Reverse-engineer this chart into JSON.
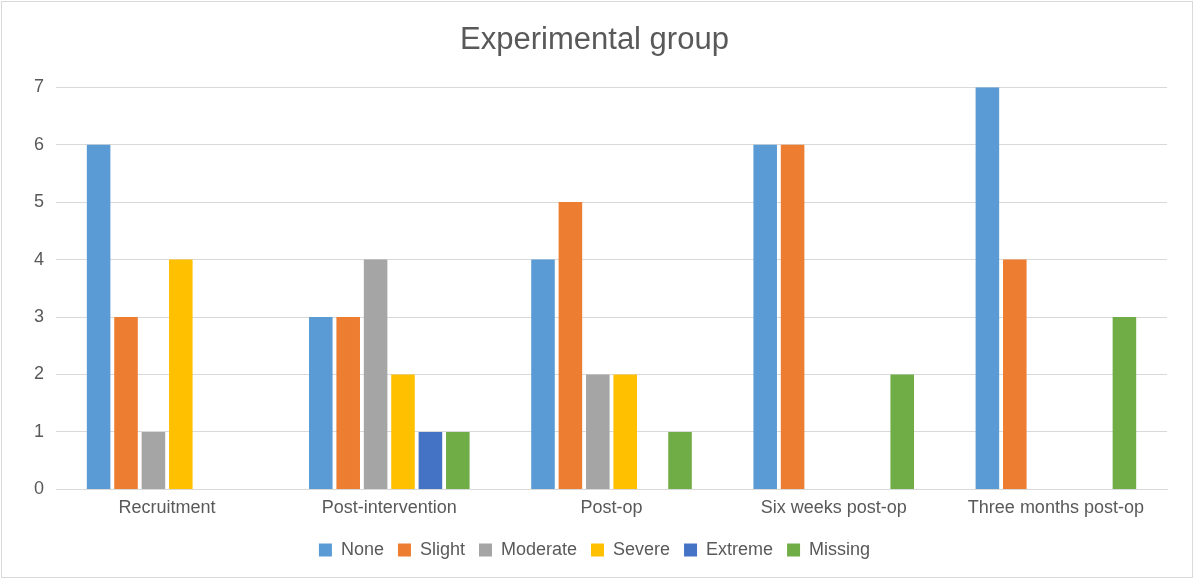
{
  "chart_data": {
    "type": "bar",
    "title": "Experimental group",
    "categories": [
      "Recruitment",
      "Post-intervention",
      "Post-op",
      "Six weeks post-op",
      "Three months post-op"
    ],
    "series": [
      {
        "name": "None",
        "color": "#5b9bd5",
        "values": [
          6,
          3,
          4,
          6,
          7
        ]
      },
      {
        "name": "Slight",
        "color": "#ed7d31",
        "values": [
          3,
          3,
          5,
          6,
          4
        ]
      },
      {
        "name": "Moderate",
        "color": "#a5a5a5",
        "values": [
          1,
          4,
          2,
          0,
          0
        ]
      },
      {
        "name": "Severe",
        "color": "#ffc000",
        "values": [
          4,
          2,
          2,
          0,
          0
        ]
      },
      {
        "name": "Extreme",
        "color": "#4472c4",
        "values": [
          0,
          1,
          0,
          0,
          0
        ]
      },
      {
        "name": "Missing",
        "color": "#70ad47",
        "values": [
          0,
          1,
          1,
          2,
          3
        ]
      }
    ],
    "ylim": [
      0,
      7
    ],
    "yticks": [
      0,
      1,
      2,
      3,
      4,
      5,
      6,
      7
    ],
    "grid": "y",
    "legend": "bottom"
  }
}
